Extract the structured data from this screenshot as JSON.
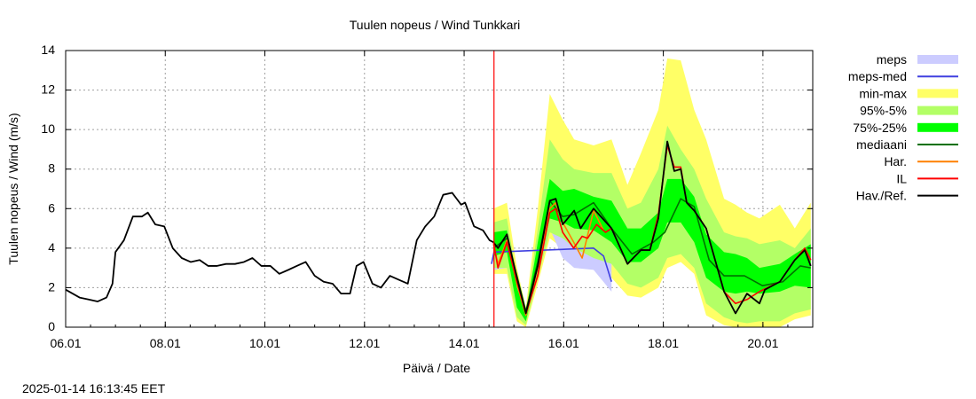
{
  "chart_data": {
    "type": "line",
    "title": "Tuulen nopeus / Wind  Tunkkari",
    "xlabel": "Päivä / Date",
    "ylabel": "Tuulen nopeus / Wind (m/s)",
    "x_unit": "days since 06.01 00:00",
    "xlim": [
      0,
      15
    ],
    "ylim": [
      0,
      14
    ],
    "x_ticks": [
      {
        "v": 0,
        "label": "06.01"
      },
      {
        "v": 2,
        "label": "08.01"
      },
      {
        "v": 4,
        "label": "10.01"
      },
      {
        "v": 6,
        "label": "12.01"
      },
      {
        "v": 8,
        "label": "14.01"
      },
      {
        "v": 10,
        "label": "16.01"
      },
      {
        "v": 12,
        "label": "18.01"
      },
      {
        "v": 14,
        "label": "20.01"
      }
    ],
    "y_ticks": [
      0,
      2,
      4,
      6,
      8,
      10,
      12,
      14
    ],
    "grid": true,
    "forecast_start": 8.6,
    "legend_position": "right",
    "legend": [
      {
        "label": "meps",
        "kind": "band",
        "color": "#ccccff"
      },
      {
        "label": "meps-med",
        "kind": "line",
        "color": "#4040e0"
      },
      {
        "label": "min-max",
        "kind": "band",
        "color": "#ffff66"
      },
      {
        "label": "95%-5%",
        "kind": "band",
        "color": "#b3ff66"
      },
      {
        "label": "75%-25%",
        "kind": "band",
        "color": "#00ff00"
      },
      {
        "label": "mediaani",
        "kind": "line",
        "color": "#007000"
      },
      {
        "label": "Har.",
        "kind": "line",
        "color": "#ff8000"
      },
      {
        "label": "IL",
        "kind": "line",
        "color": "#ff0000"
      },
      {
        "label": "Hav./Ref.",
        "kind": "line",
        "color": "#000000"
      }
    ],
    "bands_x": [
      8.59,
      8.86,
      9.06,
      9.24,
      9.48,
      9.72,
      9.98,
      10.21,
      10.6,
      10.96,
      11.28,
      11.55,
      11.9,
      12.08,
      12.35,
      12.62,
      12.86,
      13.22,
      13.45,
      13.68,
      13.93,
      14.34,
      14.64,
      14.96
    ],
    "min": [
      2.7,
      2.7,
      0.3,
      0.0,
      2.2,
      4.5,
      4.0,
      3.4,
      3.0,
      2.5,
      1.6,
      1.5,
      2.0,
      3.0,
      3.3,
      2.7,
      0.6,
      0.1,
      0,
      0,
      0,
      0,
      0.4,
      0.6
    ],
    "max": [
      6.0,
      6.3,
      3.0,
      1.0,
      6.0,
      11.8,
      10.5,
      9.5,
      9.2,
      9.5,
      7.2,
      8.8,
      11.0,
      13.6,
      13.5,
      11.0,
      9.5,
      6.5,
      6.2,
      5.8,
      5.5,
      6.2,
      5.0,
      6.3
    ],
    "p5": [
      3.0,
      3.0,
      0.5,
      0.1,
      2.5,
      4.8,
      4.5,
      4.0,
      3.5,
      3.2,
      2.2,
      2.0,
      2.5,
      3.5,
      3.7,
      3.0,
      1.2,
      0.5,
      0.3,
      0.2,
      0.3,
      0.3,
      0.7,
      0.9
    ],
    "p95": [
      5.3,
      5.5,
      2.5,
      0.8,
      5.0,
      9.5,
      8.5,
      8.0,
      7.8,
      7.8,
      6.0,
      6.3,
      8.0,
      10.2,
      9.0,
      8.0,
      6.5,
      4.8,
      4.6,
      4.5,
      4.2,
      4.4,
      4.0,
      5.0
    ],
    "p25": [
      3.6,
      3.8,
      1.0,
      0.3,
      3.0,
      5.5,
      5.3,
      5.0,
      4.9,
      4.3,
      3.3,
      3.3,
      4.0,
      5.3,
      5.3,
      4.3,
      2.5,
      1.8,
      1.7,
      1.8,
      1.7,
      1.8,
      2.1,
      2.0
    ],
    "p75": [
      4.8,
      4.9,
      2.0,
      0.7,
      4.3,
      7.5,
      6.9,
      7.0,
      6.6,
      6.4,
      5.0,
      5.0,
      5.8,
      7.5,
      7.5,
      6.6,
      4.7,
      3.8,
      3.7,
      3.5,
      3.0,
      3.2,
      3.7,
      4.2
    ],
    "meps": {
      "x": [
        8.59,
        8.86,
        9.06,
        9.24,
        9.48,
        9.72,
        9.98,
        10.21,
        10.6,
        10.96
      ],
      "upper": [
        4.6,
        4.8,
        2.5,
        0.9,
        4.0,
        6.5,
        6.0,
        5.5,
        5.5,
        4.2
      ],
      "lower": [
        2.9,
        3.0,
        0.6,
        0.3,
        2.5,
        5.0,
        3.5,
        3.0,
        2.9,
        1.8
      ]
    },
    "series": [
      {
        "name": "meps-med",
        "color": "#4040e0",
        "x": [
          8.55,
          8.6,
          10.6,
          10.8,
          10.96
        ],
        "y": [
          3.2,
          3.8,
          4.0,
          3.6,
          2.3
        ]
      },
      {
        "name": "mediaani",
        "color": "#007000",
        "x": [
          8.59,
          8.86,
          9.06,
          9.24,
          9.48,
          9.72,
          9.98,
          10.21,
          10.6,
          10.96,
          11.37,
          11.8,
          12.03,
          12.35,
          12.62,
          12.92,
          13.22,
          13.63,
          13.99,
          14.4,
          14.75,
          14.96
        ],
        "y": [
          4.0,
          4.5,
          2.6,
          0.8,
          3.3,
          6.4,
          5.6,
          5.7,
          6.3,
          5.0,
          3.7,
          4.3,
          4.8,
          6.5,
          6.1,
          3.4,
          2.6,
          2.6,
          2.1,
          2.3,
          3.1,
          3.0
        ]
      },
      {
        "name": "Har.",
        "color": "#ff8000",
        "x": [
          8.59,
          8.68,
          8.86,
          9.06,
          9.24,
          9.48,
          9.72,
          9.84,
          9.98,
          10.2,
          10.37,
          10.6,
          10.8
        ],
        "y": [
          4.2,
          3.2,
          4.4,
          2.2,
          0.6,
          2.7,
          6.0,
          6.3,
          5.3,
          4.3,
          3.5,
          5.9,
          4.9
        ]
      },
      {
        "name": "IL",
        "color": "#ff0000",
        "x": [
          8.59,
          8.68,
          8.86,
          9.06,
          9.24,
          9.48,
          9.72,
          9.84,
          9.98,
          10.2,
          10.37,
          10.48,
          10.66,
          10.84,
          10.96,
          11.28,
          11.55,
          11.73,
          11.9,
          12.08,
          12.22,
          12.35,
          12.47,
          12.62,
          12.86,
          13.04,
          13.22,
          13.45,
          13.68,
          13.93,
          14.34,
          14.64,
          14.84,
          14.96
        ],
        "y": [
          4.3,
          3.0,
          4.3,
          2.3,
          0.7,
          2.6,
          5.8,
          6.0,
          4.8,
          4.0,
          4.6,
          4.5,
          5.2,
          4.8,
          5.0,
          3.2,
          3.9,
          3.9,
          5.7,
          9.2,
          8.1,
          8.1,
          6.3,
          5.9,
          5.0,
          3.4,
          1.8,
          1.2,
          1.4,
          1.8,
          2.3,
          3.4,
          4.0,
          3.4
        ]
      },
      {
        "name": "Hav./Ref.",
        "color": "#000000",
        "x": [
          0,
          0.28,
          0.46,
          0.64,
          0.82,
          0.94,
          1.0,
          1.17,
          1.35,
          1.53,
          1.65,
          1.8,
          1.98,
          2.15,
          2.33,
          2.51,
          2.69,
          2.86,
          3.04,
          3.22,
          3.4,
          3.58,
          3.75,
          3.93,
          4.11,
          4.29,
          4.47,
          4.64,
          4.82,
          5.0,
          5.18,
          5.36,
          5.53,
          5.71,
          5.84,
          5.98,
          6.16,
          6.33,
          6.51,
          6.69,
          6.87,
          6.96,
          7.05,
          7.22,
          7.4,
          7.58,
          7.76,
          7.85,
          7.94,
          8.02,
          8.2,
          8.38,
          8.51,
          8.59,
          8.68,
          8.86,
          9.06,
          9.24,
          9.48,
          9.72,
          9.84,
          9.98,
          10.21,
          10.34,
          10.6,
          10.96,
          11.28,
          11.55,
          11.73,
          11.9,
          12.08,
          12.22,
          12.35,
          12.47,
          12.62,
          12.86,
          13.04,
          13.22,
          13.45,
          13.68,
          13.93,
          14.04,
          14.34,
          14.64,
          14.84,
          14.96
        ],
        "y": [
          1.9,
          1.5,
          1.4,
          1.3,
          1.5,
          2.2,
          3.8,
          4.4,
          5.6,
          5.6,
          5.8,
          5.2,
          5.1,
          4.0,
          3.5,
          3.3,
          3.4,
          3.1,
          3.1,
          3.2,
          3.2,
          3.3,
          3.5,
          3.1,
          3.1,
          2.7,
          2.9,
          3.1,
          3.3,
          2.6,
          2.3,
          2.2,
          1.7,
          1.7,
          3.1,
          3.3,
          2.2,
          2.0,
          2.6,
          2.4,
          2.2,
          3.3,
          4.4,
          5.1,
          5.6,
          6.7,
          6.8,
          6.5,
          6.2,
          6.3,
          5.1,
          4.9,
          4.4,
          4.3,
          4.0,
          4.7,
          2.5,
          0.7,
          3.1,
          6.4,
          6.5,
          5.2,
          5.9,
          5.0,
          6.0,
          5.0,
          3.2,
          3.9,
          3.9,
          5.5,
          9.4,
          7.9,
          8.0,
          6.3,
          5.9,
          5.0,
          3.4,
          1.8,
          0.7,
          1.7,
          1.2,
          1.9,
          2.3,
          3.4,
          3.9,
          3.1
        ]
      }
    ]
  },
  "footer": {
    "timestamp": "2025-01-14 16:13:45 EET"
  }
}
